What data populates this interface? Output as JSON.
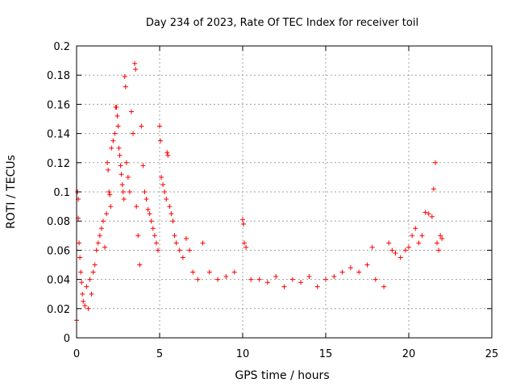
{
  "chart_data": {
    "type": "scatter",
    "title": "Day 234 of 2023, Rate Of TEC Index for receiver toil",
    "xlabel": "GPS time / hours",
    "ylabel": "ROTI / TECUs",
    "xlim": [
      0,
      25
    ],
    "ylim": [
      0,
      0.2
    ],
    "x_ticks": [
      0,
      5,
      10,
      15,
      20,
      25
    ],
    "y_ticks": [
      0,
      0.02,
      0.04,
      0.06,
      0.08,
      0.1,
      0.12,
      0.14,
      0.16,
      0.18,
      0.2
    ],
    "x_tick_labels": [
      "0",
      "5",
      "10",
      "15",
      "20",
      "25"
    ],
    "y_tick_labels": [
      "0",
      "0.02",
      "0.04",
      "0.06",
      "0.08",
      "0.1",
      "0.12",
      "0.14",
      "0.16",
      "0.18",
      "0.2"
    ],
    "grid": true,
    "marker": "+",
    "marker_color": "#ff0000",
    "series": [
      {
        "name": "ROTI",
        "points": [
          [
            0.0,
            0.012
          ],
          [
            0.05,
            0.1
          ],
          [
            0.1,
            0.095
          ],
          [
            0.1,
            0.082
          ],
          [
            0.15,
            0.065
          ],
          [
            0.2,
            0.055
          ],
          [
            0.25,
            0.045
          ],
          [
            0.3,
            0.038
          ],
          [
            0.35,
            0.03
          ],
          [
            0.4,
            0.025
          ],
          [
            0.5,
            0.022
          ],
          [
            0.6,
            0.035
          ],
          [
            0.7,
            0.02
          ],
          [
            0.8,
            0.04
          ],
          [
            0.9,
            0.03
          ],
          [
            1.0,
            0.045
          ],
          [
            1.1,
            0.05
          ],
          [
            1.2,
            0.06
          ],
          [
            1.3,
            0.065
          ],
          [
            1.4,
            0.07
          ],
          [
            1.5,
            0.075
          ],
          [
            1.6,
            0.08
          ],
          [
            1.7,
            0.062
          ],
          [
            1.8,
            0.085
          ],
          [
            1.85,
            0.12
          ],
          [
            1.9,
            0.115
          ],
          [
            1.95,
            0.1
          ],
          [
            2.0,
            0.098
          ],
          [
            2.05,
            0.09
          ],
          [
            2.1,
            0.13
          ],
          [
            2.2,
            0.135
          ],
          [
            2.3,
            0.14
          ],
          [
            2.35,
            0.158
          ],
          [
            2.4,
            0.158
          ],
          [
            2.45,
            0.152
          ],
          [
            2.5,
            0.145
          ],
          [
            2.55,
            0.13
          ],
          [
            2.6,
            0.125
          ],
          [
            2.65,
            0.118
          ],
          [
            2.7,
            0.112
          ],
          [
            2.75,
            0.105
          ],
          [
            2.8,
            0.1
          ],
          [
            2.85,
            0.095
          ],
          [
            2.9,
            0.179
          ],
          [
            2.95,
            0.172
          ],
          [
            3.0,
            0.12
          ],
          [
            3.1,
            0.11
          ],
          [
            3.2,
            0.1
          ],
          [
            3.3,
            0.155
          ],
          [
            3.4,
            0.14
          ],
          [
            3.5,
            0.188
          ],
          [
            3.55,
            0.184
          ],
          [
            3.6,
            0.09
          ],
          [
            3.7,
            0.07
          ],
          [
            3.8,
            0.05
          ],
          [
            3.9,
            0.145
          ],
          [
            4.0,
            0.118
          ],
          [
            4.1,
            0.1
          ],
          [
            4.2,
            0.095
          ],
          [
            4.3,
            0.088
          ],
          [
            4.4,
            0.085
          ],
          [
            4.5,
            0.08
          ],
          [
            4.6,
            0.075
          ],
          [
            4.7,
            0.07
          ],
          [
            4.8,
            0.065
          ],
          [
            4.9,
            0.06
          ],
          [
            5.0,
            0.145
          ],
          [
            5.05,
            0.135
          ],
          [
            5.1,
            0.11
          ],
          [
            5.2,
            0.105
          ],
          [
            5.3,
            0.1
          ],
          [
            5.4,
            0.095
          ],
          [
            5.45,
            0.127
          ],
          [
            5.5,
            0.125
          ],
          [
            5.6,
            0.09
          ],
          [
            5.7,
            0.085
          ],
          [
            5.8,
            0.08
          ],
          [
            5.9,
            0.07
          ],
          [
            6.0,
            0.065
          ],
          [
            6.2,
            0.06
          ],
          [
            6.4,
            0.055
          ],
          [
            6.6,
            0.068
          ],
          [
            6.8,
            0.06
          ],
          [
            7.0,
            0.045
          ],
          [
            7.3,
            0.04
          ],
          [
            7.6,
            0.065
          ],
          [
            8.0,
            0.045
          ],
          [
            8.5,
            0.04
          ],
          [
            9.0,
            0.042
          ],
          [
            9.5,
            0.045
          ],
          [
            10.0,
            0.081
          ],
          [
            10.05,
            0.078
          ],
          [
            10.1,
            0.065
          ],
          [
            10.2,
            0.062
          ],
          [
            10.5,
            0.04
          ],
          [
            11.0,
            0.04
          ],
          [
            11.5,
            0.038
          ],
          [
            12.0,
            0.042
          ],
          [
            12.5,
            0.035
          ],
          [
            13.0,
            0.04
          ],
          [
            13.5,
            0.038
          ],
          [
            14.0,
            0.042
          ],
          [
            14.5,
            0.035
          ],
          [
            15.0,
            0.04
          ],
          [
            15.5,
            0.042
          ],
          [
            16.0,
            0.045
          ],
          [
            16.5,
            0.048
          ],
          [
            17.0,
            0.045
          ],
          [
            17.5,
            0.05
          ],
          [
            17.8,
            0.062
          ],
          [
            18.0,
            0.04
          ],
          [
            18.5,
            0.035
          ],
          [
            18.8,
            0.065
          ],
          [
            19.0,
            0.06
          ],
          [
            19.2,
            0.058
          ],
          [
            19.5,
            0.055
          ],
          [
            19.8,
            0.06
          ],
          [
            20.0,
            0.062
          ],
          [
            20.2,
            0.07
          ],
          [
            20.4,
            0.075
          ],
          [
            20.6,
            0.065
          ],
          [
            20.8,
            0.07
          ],
          [
            21.0,
            0.086
          ],
          [
            21.2,
            0.085
          ],
          [
            21.4,
            0.083
          ],
          [
            21.5,
            0.102
          ],
          [
            21.6,
            0.12
          ],
          [
            21.7,
            0.065
          ],
          [
            21.8,
            0.06
          ],
          [
            21.9,
            0.07
          ],
          [
            22.0,
            0.068
          ]
        ]
      }
    ]
  }
}
